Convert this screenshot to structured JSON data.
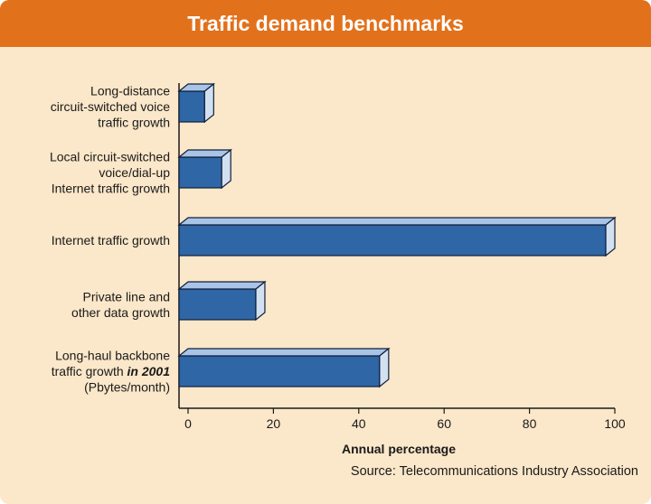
{
  "chart_data": {
    "type": "bar",
    "orientation": "horizontal",
    "title": "Traffic demand benchmarks",
    "xlabel": "Annual percentage",
    "xlim": [
      0,
      100
    ],
    "xticks": [
      "0",
      "20",
      "40",
      "60",
      "80",
      "100"
    ],
    "categories": [
      {
        "lines": [
          {
            "t": "Long-distance"
          },
          {
            "t": "circuit-switched voice"
          },
          {
            "t": "traffic growth"
          }
        ]
      },
      {
        "lines": [
          {
            "t": "Local circuit-switched"
          },
          {
            "t": "voice/dial-up"
          },
          {
            "t": "Internet traffic growth"
          }
        ]
      },
      {
        "lines": [
          {
            "t": "Internet traffic growth"
          }
        ]
      },
      {
        "lines": [
          {
            "t": "Private line and"
          },
          {
            "t": "other data growth"
          }
        ]
      },
      {
        "lines": [
          {
            "t": "Long-haul backbone"
          },
          {
            "t": "traffic growth ",
            "b": "in 2001"
          },
          {
            "t": "(Pbytes/month)"
          }
        ]
      }
    ],
    "values": [
      6,
      10,
      100,
      18,
      47
    ],
    "colors": {
      "bar": "#2f66a6",
      "bar_top": "#a9c4e6",
      "bar_side": "#d2e0f1",
      "outline": "#0f1f3a",
      "header": "#e2711c",
      "background": "#fbe7c9"
    },
    "source": "Source: Telecommunications Industry Association"
  }
}
